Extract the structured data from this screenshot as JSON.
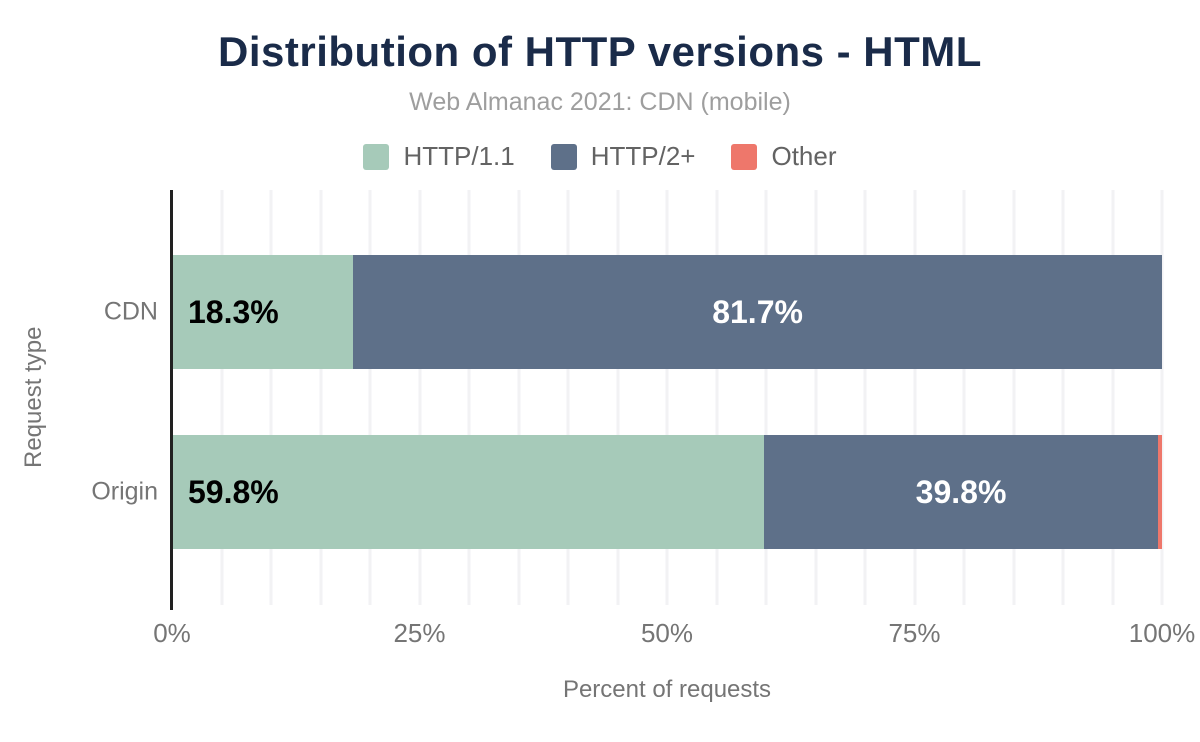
{
  "title": "Distribution of HTTP versions - HTML",
  "subtitle": "Web Almanac 2021: CDN (mobile)",
  "chart_data": {
    "type": "bar",
    "orientation": "horizontal",
    "stacked": true,
    "title": "Distribution of HTTP versions - HTML",
    "subtitle": "Web Almanac 2021: CDN (mobile)",
    "xlabel": "Percent of requests",
    "ylabel": "Request type",
    "xlim": [
      0,
      100
    ],
    "x_ticks": [
      "0%",
      "25%",
      "50%",
      "75%",
      "100%"
    ],
    "grid": "vertical every 5%",
    "legend_position": "top",
    "categories": [
      "CDN",
      "Origin"
    ],
    "series": [
      {
        "name": "HTTP/1.1",
        "color": "#a6cab9",
        "values": [
          18.3,
          59.8
        ],
        "data_labels": [
          "18.3%",
          "59.8%"
        ],
        "label_color": "#000000",
        "label_align": "left"
      },
      {
        "name": "HTTP/2+",
        "color": "#5e7089",
        "values": [
          81.7,
          39.8
        ],
        "data_labels": [
          "81.7%",
          "39.8%"
        ],
        "label_color": "#ffffff",
        "label_align": "center"
      },
      {
        "name": "Other",
        "color": "#ee776b",
        "values": [
          0.0,
          0.4
        ],
        "data_labels": [
          "",
          ""
        ],
        "label_color": "",
        "label_align": "none"
      }
    ]
  },
  "colors": {
    "title": "#1a2b49",
    "subtitle": "#9e9e9e",
    "axis_text": "#757575",
    "axis_line": "#212121",
    "gridline": "#f2f2f4",
    "background": "#ffffff"
  }
}
